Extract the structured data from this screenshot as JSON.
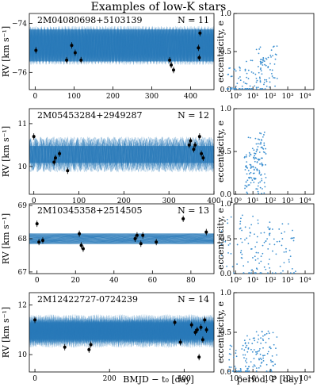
{
  "figure_title": "Examples of low-K stars",
  "rv_ylabel": "RV [km s⁻¹]",
  "rv_xlabel": "BMJD − t₀ [day]",
  "ecc_ylabel": "eccentricity, e",
  "ecc_xlabel": "period, P [day]",
  "colors": {
    "model": "#2b7bba",
    "points": "#000000",
    "scatter": "#3b8fd0"
  },
  "chart_data": [
    {
      "type": "line",
      "title": "2M04080698+5103139",
      "n_label": "N = 11",
      "xlim": [
        -15,
        460
      ],
      "ylim": [
        -76.7,
        -73.6
      ],
      "xticks": [
        0,
        100,
        200,
        300,
        400
      ],
      "yticks": [
        -74,
        -76
      ],
      "model": {
        "center": -74.9,
        "amplitude": 0.55,
        "band": 0.65,
        "period": 8.0
      },
      "x": [
        2,
        81,
        94,
        103,
        118,
        346,
        350,
        356,
        420,
        422,
        424
      ],
      "y": [
        -75.1,
        -75.5,
        -74.9,
        -75.2,
        -75.5,
        -75.5,
        -75.7,
        -75.9,
        -75.0,
        -75.4,
        -74.4
      ]
    },
    {
      "type": "line",
      "title": "2M05453284+2949287",
      "n_label": "N = 12",
      "xlim": [
        -10,
        400
      ],
      "ylim": [
        9.35,
        11.35
      ],
      "xticks": [
        0,
        100,
        200,
        300,
        400
      ],
      "yticks": [
        10,
        11
      ],
      "model": {
        "center": 10.28,
        "amplitude": 0.28,
        "band": 0.2,
        "period": 13.5
      },
      "x": [
        0,
        45,
        48,
        57,
        75,
        345,
        348,
        355,
        358,
        368,
        372,
        376
      ],
      "y": [
        10.7,
        10.1,
        10.2,
        10.3,
        9.9,
        10.5,
        10.6,
        10.4,
        10.5,
        10.7,
        10.3,
        10.2
      ]
    },
    {
      "type": "line",
      "title": "2M10345358+2514505",
      "n_label": "N = 13",
      "xlim": [
        -4,
        92
      ],
      "ylim": [
        66.95,
        69.05
      ],
      "xticks": [
        0,
        20,
        40,
        60,
        80
      ],
      "yticks": [
        67,
        68,
        69
      ],
      "model": {
        "center": 68.0,
        "amplitude": 0.1,
        "band": 0.16,
        "period": 40
      },
      "x": [
        0,
        1,
        3,
        22,
        23,
        24,
        51,
        52,
        54,
        55,
        62,
        76,
        88
      ],
      "y": [
        68.45,
        67.9,
        67.95,
        68.15,
        67.8,
        67.7,
        68.0,
        68.1,
        67.85,
        68.1,
        67.9,
        68.6,
        68.2
      ]
    },
    {
      "type": "line",
      "title": "2M12422727-0724239",
      "n_label": "N = 14",
      "xlim": [
        -15,
        480
      ],
      "ylim": [
        9.3,
        12.5
      ],
      "xticks": [
        0,
        200,
        400
      ],
      "yticks": [
        10,
        12
      ],
      "model": {
        "center": 10.95,
        "amplitude": 0.45,
        "band": 0.35,
        "period": 5.0
      },
      "x": [
        0,
        80,
        145,
        150,
        375,
        390,
        420,
        430,
        435,
        440,
        445,
        450,
        455,
        460
      ],
      "y": [
        11.4,
        10.3,
        10.2,
        10.4,
        11.3,
        10.5,
        11.2,
        10.9,
        11.0,
        9.9,
        11.1,
        10.6,
        11.4,
        11.0
      ]
    }
  ],
  "ecc_panels": {
    "xlim_log": [
      -0.1,
      4.5
    ],
    "xticks": [
      "10⁰",
      "10¹",
      "10²",
      "10³",
      "10⁴"
    ],
    "yticks": [
      "0.0",
      "0.5",
      "1.0"
    ],
    "ylim": [
      0,
      1
    ]
  }
}
